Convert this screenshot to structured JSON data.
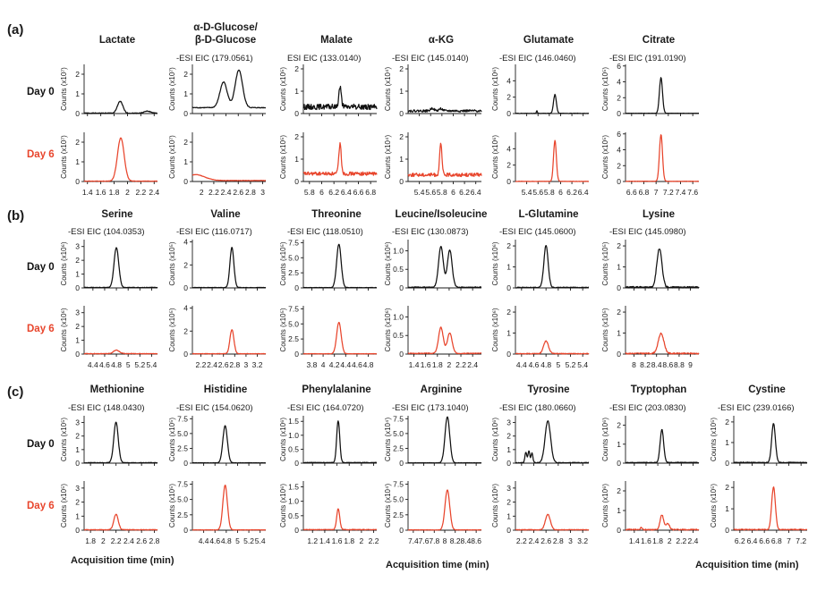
{
  "colors": {
    "day0": "#111111",
    "day6": "#e8452c"
  },
  "sections": [
    "(a)",
    "(b)",
    "(c)"
  ],
  "days": [
    "Day 0",
    "Day 6"
  ],
  "xlabel": "Acquisition time (min)",
  "chart_data": [
    {
      "section": "a",
      "title": [
        "Lactate"
      ],
      "eic": "",
      "type": "line",
      "xlim": [
        1.35,
        2.45
      ],
      "xticks": [
        1.4,
        1.6,
        1.8,
        2,
        2.2,
        2.4
      ],
      "xticklabels": [
        "1.4",
        "1.6",
        "1.8",
        "2",
        "2.2",
        "2.4"
      ],
      "ylim": [
        0,
        2.5
      ],
      "yticks": [
        1,
        2
      ],
      "yticklabels": [
        "1",
        "2"
      ],
      "ylabel": "Counts (x10⁷)",
      "day0": {
        "base": 0.02,
        "noise": 0.02,
        "peaks": [
          [
            1.89,
            0.6,
            0.04
          ],
          [
            2.3,
            0.1,
            0.05
          ]
        ]
      },
      "day6": {
        "base": 0.02,
        "noise": 0.01,
        "peaks": [
          [
            1.9,
            2.2,
            0.05
          ]
        ]
      }
    },
    {
      "section": "a",
      "title": [
        "α-D-Glucose/",
        "β-D-Glucose"
      ],
      "eic": "-ESI EIC (179.0561)",
      "type": "line",
      "xlim": [
        1.85,
        3.05
      ],
      "xticks": [
        2,
        2.2,
        2.4,
        2.6,
        2.8,
        3
      ],
      "xticklabels": [
        "2",
        "2.2",
        "2.4",
        "2.6",
        "2.8",
        "3"
      ],
      "ylim": [
        0,
        2.5
      ],
      "yticks": [
        1,
        2
      ],
      "yticklabels": [
        "1",
        "2"
      ],
      "ylabel": "Counts (x10⁷)",
      "day0": {
        "base": 0.3,
        "noise": 0.02,
        "peaks": [
          [
            2.36,
            1.3,
            0.06
          ],
          [
            2.61,
            1.9,
            0.06
          ]
        ]
      },
      "day6": {
        "base": 0.05,
        "noise": 0.01,
        "peaks": [
          [
            1.9,
            0.3,
            0.15
          ]
        ]
      }
    },
    {
      "section": "a",
      "title": [
        "Malate"
      ],
      "eic": "ESI EIC (133.0140)",
      "type": "line",
      "xlim": [
        5.7,
        6.9
      ],
      "xticks": [
        5.8,
        6,
        6.2,
        6.4,
        6.6,
        6.8
      ],
      "xticklabels": [
        "5.8",
        "6",
        "6.2",
        "6.4",
        "6.6",
        "6.8"
      ],
      "ylim": [
        0,
        2.2
      ],
      "yticks": [
        1,
        2
      ],
      "yticklabels": [
        "1",
        "2"
      ],
      "ylabel": "Counts (x10⁵)",
      "day0": {
        "base": 0.3,
        "noise": 0.12,
        "peaks": [
          [
            6.3,
            0.9,
            0.02
          ]
        ]
      },
      "day6": {
        "base": 0.35,
        "noise": 0.08,
        "peaks": [
          [
            6.3,
            1.35,
            0.02
          ]
        ]
      }
    },
    {
      "section": "a",
      "title": [
        "α-KG"
      ],
      "eic": "-ESI EIC (145.0140)",
      "type": "line",
      "xlim": [
        5.2,
        6.5
      ],
      "xticks": [
        5.4,
        5.6,
        5.8,
        6,
        6.2,
        6.4
      ],
      "xticklabels": [
        "5.4",
        "5.6",
        "5.8",
        "6",
        "6.2",
        "6.4"
      ],
      "ylim": [
        0,
        2.2
      ],
      "yticks": [
        1,
        2
      ],
      "yticklabels": [
        "1",
        "2"
      ],
      "ylabel": "Counts (x10⁴)",
      "day0": {
        "base": 0.12,
        "noise": 0.05,
        "peaks": [
          [
            5.63,
            0.12,
            0.03
          ],
          [
            5.78,
            0.1,
            0.03
          ]
        ]
      },
      "day6": {
        "base": 0.3,
        "noise": 0.08,
        "peaks": [
          [
            5.78,
            1.4,
            0.02
          ]
        ]
      }
    },
    {
      "section": "a",
      "title": [
        "Glutamate"
      ],
      "eic": "-ESI EIC (146.0460)",
      "type": "line",
      "xlim": [
        5.2,
        6.5
      ],
      "xticks": [
        5.4,
        5.6,
        5.8,
        6,
        6.2,
        6.4
      ],
      "xticklabels": [
        "5.4",
        "5.6",
        "5.8",
        "6",
        "6.2",
        "6.4"
      ],
      "ylim": [
        0,
        6
      ],
      "yticks": [
        2,
        4
      ],
      "yticklabels": [
        "2",
        "4"
      ],
      "ylabel": "Counts (x10⁶)",
      "day0": {
        "base": 0.02,
        "noise": 0.03,
        "peaks": [
          [
            5.58,
            0.3,
            0.01
          ],
          [
            5.9,
            2.3,
            0.025
          ]
        ]
      },
      "day6": {
        "base": 0.02,
        "noise": 0.02,
        "peaks": [
          [
            5.9,
            5.0,
            0.025
          ]
        ]
      }
    },
    {
      "section": "a",
      "title": [
        "Citrate"
      ],
      "eic": "-ESI EIC (191.0190)",
      "type": "line",
      "xlim": [
        6.5,
        7.7
      ],
      "xticks": [
        6.6,
        6.8,
        7,
        7.2,
        7.4,
        7.6
      ],
      "xticklabels": [
        "6.6",
        "6.8",
        "7",
        "7.2",
        "7.4",
        "7.6"
      ],
      "ylim": [
        0,
        6.2
      ],
      "yticks": [
        2,
        4,
        6
      ],
      "yticklabels": [
        "2",
        "4",
        "6"
      ],
      "ylabel": "Counts (x10⁵)",
      "day0": {
        "base": 0.03,
        "noise": 0.02,
        "peaks": [
          [
            7.08,
            4.5,
            0.025
          ]
        ]
      },
      "day6": {
        "base": 0.03,
        "noise": 0.02,
        "peaks": [
          [
            7.08,
            5.9,
            0.025
          ]
        ]
      }
    },
    {
      "section": "b",
      "title": [
        "Serine"
      ],
      "eic": "-ESI EIC (104.0353)",
      "type": "line",
      "xlim": [
        4.25,
        5.5
      ],
      "xticks": [
        4.4,
        4.6,
        4.8,
        5,
        5.2,
        5.4
      ],
      "xticklabels": [
        "4.4",
        "4.6",
        "4.8",
        "5",
        "5.2",
        "5.4"
      ],
      "ylim": [
        0,
        3.5
      ],
      "yticks": [
        1,
        2,
        3
      ],
      "yticklabels": [
        "1",
        "2",
        "3"
      ],
      "ylabel": "Counts (x10⁶)",
      "day0": {
        "base": 0.03,
        "noise": 0.02,
        "peaks": [
          [
            4.8,
            2.9,
            0.04
          ]
        ]
      },
      "day6": {
        "base": 0.03,
        "noise": 0.02,
        "peaks": [
          [
            4.8,
            0.25,
            0.05
          ]
        ]
      }
    },
    {
      "section": "b",
      "title": [
        "Valine"
      ],
      "eic": "-ESI EIC (116.0717)",
      "type": "line",
      "xlim": [
        2.05,
        3.35
      ],
      "xticks": [
        2.2,
        2.4,
        2.6,
        2.8,
        3,
        3.2
      ],
      "xticklabels": [
        "2.2",
        "2.4",
        "2.6",
        "2.8",
        "3",
        "3.2"
      ],
      "ylim": [
        0,
        4.2
      ],
      "yticks": [
        2,
        4
      ],
      "yticklabels": [
        "2",
        "4"
      ],
      "ylabel": "Counts (x10⁵)",
      "day0": {
        "base": 0.03,
        "noise": 0.02,
        "peaks": [
          [
            2.75,
            3.5,
            0.035
          ]
        ]
      },
      "day6": {
        "base": 0.03,
        "noise": 0.02,
        "peaks": [
          [
            2.75,
            2.1,
            0.035
          ]
        ]
      }
    },
    {
      "section": "b",
      "title": [
        "Threonine"
      ],
      "eic": "-ESI EIC (118.0510)",
      "type": "line",
      "xlim": [
        3.65,
        4.95
      ],
      "xticks": [
        3.8,
        4,
        4.2,
        4.4,
        4.6,
        4.8
      ],
      "xticklabels": [
        "3.8",
        "4",
        "4.2",
        "4.4",
        "4.6",
        "4.8"
      ],
      "ylim": [
        0,
        8
      ],
      "yticks": [
        2.5,
        5,
        7.5
      ],
      "yticklabels": [
        "2.5",
        "5.0",
        "7.5"
      ],
      "ylabel": "Counts (x10⁵)",
      "day0": {
        "base": 0.05,
        "noise": 0.03,
        "peaks": [
          [
            4.28,
            7.2,
            0.04
          ]
        ]
      },
      "day6": {
        "base": 0.05,
        "noise": 0.03,
        "peaks": [
          [
            4.28,
            5.2,
            0.04
          ]
        ]
      }
    },
    {
      "section": "b",
      "title": [
        "Leucine/Isoleucine"
      ],
      "eic": "-ESI EIC (130.0873)",
      "type": "line",
      "xlim": [
        1.3,
        2.55
      ],
      "xticks": [
        1.4,
        1.6,
        1.8,
        2,
        2.2,
        2.4
      ],
      "xticklabels": [
        "1.4",
        "1.6",
        "1.8",
        "2",
        "2.2",
        "2.4"
      ],
      "ylim": [
        0,
        1.3
      ],
      "yticks": [
        0.5,
        1
      ],
      "yticklabels": [
        "0.5",
        "1.0"
      ],
      "ylabel": "Counts (x10⁶)",
      "day0": {
        "base": 0.02,
        "noise": 0.01,
        "peaks": [
          [
            1.86,
            1.1,
            0.04
          ],
          [
            2.01,
            1.0,
            0.04
          ]
        ]
      },
      "day6": {
        "base": 0.02,
        "noise": 0.01,
        "peaks": [
          [
            1.86,
            0.7,
            0.04
          ],
          [
            2.01,
            0.55,
            0.04
          ]
        ]
      }
    },
    {
      "section": "b",
      "title": [
        "L-Glutamine"
      ],
      "eic": "-ESI EIC (145.0600)",
      "type": "line",
      "xlim": [
        4.3,
        5.5
      ],
      "xticks": [
        4.4,
        4.6,
        4.8,
        5,
        5.2,
        5.4
      ],
      "xticklabels": [
        "4.4",
        "4.6",
        "4.8",
        "5",
        "5.2",
        "5.4"
      ],
      "ylim": [
        0,
        2.3
      ],
      "yticks": [
        1,
        2
      ],
      "yticklabels": [
        "1",
        "2"
      ],
      "ylabel": "Counts (x10⁶)",
      "day0": {
        "base": 0.02,
        "noise": 0.02,
        "peaks": [
          [
            4.8,
            2.0,
            0.035
          ]
        ]
      },
      "day6": {
        "base": 0.02,
        "noise": 0.02,
        "peaks": [
          [
            4.8,
            0.6,
            0.04
          ]
        ]
      }
    },
    {
      "section": "b",
      "title": [
        "Lysine"
      ],
      "eic": "-ESI EIC (145.0980)",
      "type": "line",
      "xlim": [
        7.85,
        9.15
      ],
      "xticks": [
        8,
        8.2,
        8.4,
        8.6,
        8.8,
        9
      ],
      "xticklabels": [
        "8",
        "8.2",
        "8.4",
        "8.6",
        "8.8",
        "9"
      ],
      "ylim": [
        0,
        2.3
      ],
      "yticks": [
        1,
        2
      ],
      "yticklabels": [
        "1",
        "2"
      ],
      "ylabel": "Counts (x10⁵)",
      "day0": {
        "base": 0.03,
        "noise": 0.04,
        "peaks": [
          [
            8.45,
            1.85,
            0.045
          ]
        ]
      },
      "day6": {
        "base": 0.03,
        "noise": 0.03,
        "peaks": [
          [
            8.48,
            0.95,
            0.05
          ]
        ]
      }
    },
    {
      "section": "c",
      "title": [
        "Methionine"
      ],
      "eic": "-ESI EIC (148.0430)",
      "type": "line",
      "xlim": [
        1.7,
        2.85
      ],
      "xticks": [
        1.8,
        2,
        2.2,
        2.4,
        2.6,
        2.8
      ],
      "xticklabels": [
        "1.8",
        "2",
        "2.2",
        "2.4",
        "2.6",
        "2.8"
      ],
      "ylim": [
        0,
        3.5
      ],
      "yticks": [
        1,
        2,
        3
      ],
      "yticklabels": [
        "1",
        "2",
        "3"
      ],
      "ylabel": "Counts (x10⁵)",
      "day0": {
        "base": 0.03,
        "noise": 0.02,
        "peaks": [
          [
            2.2,
            3.0,
            0.035
          ]
        ]
      },
      "day6": {
        "base": 0.03,
        "noise": 0.02,
        "peaks": [
          [
            2.2,
            1.1,
            0.035
          ]
        ]
      }
    },
    {
      "section": "c",
      "title": [
        "Histidine"
      ],
      "eic": "-ESI EIC (154.0620)",
      "type": "line",
      "xlim": [
        4.2,
        5.5
      ],
      "xticks": [
        4.4,
        4.6,
        4.8,
        5,
        5.2,
        5.4
      ],
      "xticklabels": [
        "4.4",
        "4.6",
        "4.8",
        "5",
        "5.2",
        "5.4"
      ],
      "ylim": [
        0,
        8
      ],
      "yticks": [
        2.5,
        5,
        7.5
      ],
      "yticklabels": [
        "2.5",
        "5.0",
        "7.5"
      ],
      "ylabel": "Counts (x10⁵)",
      "day0": {
        "base": 0.05,
        "noise": 0.03,
        "peaks": [
          [
            4.78,
            6.3,
            0.04
          ]
        ]
      },
      "day6": {
        "base": 0.05,
        "noise": 0.03,
        "peaks": [
          [
            4.78,
            7.3,
            0.04
          ]
        ]
      }
    },
    {
      "section": "c",
      "title": [
        "Phenylalanine"
      ],
      "eic": "-ESI EIC (164.0720)",
      "type": "line",
      "xlim": [
        1.05,
        2.25
      ],
      "xticks": [
        1.2,
        1.4,
        1.6,
        1.8,
        2,
        2.2
      ],
      "xticklabels": [
        "1.2",
        "1.4",
        "1.6",
        "1.8",
        "2",
        "2.2"
      ],
      "ylim": [
        0,
        1.7
      ],
      "yticks": [
        0.5,
        1,
        1.5
      ],
      "yticklabels": [
        "0.5",
        "1.0",
        "1.5"
      ],
      "ylabel": "Counts (x10⁶)",
      "day0": {
        "base": 0.02,
        "noise": 0.01,
        "peaks": [
          [
            1.62,
            1.5,
            0.025
          ]
        ]
      },
      "day6": {
        "base": 0.02,
        "noise": 0.01,
        "peaks": [
          [
            1.62,
            0.72,
            0.025
          ]
        ]
      }
    },
    {
      "section": "c",
      "title": [
        "Arginine"
      ],
      "eic": "-ESI EIC (173.1040)",
      "type": "line",
      "xlim": [
        7.3,
        8.7
      ],
      "xticks": [
        7.4,
        7.6,
        7.8,
        8,
        8.2,
        8.4,
        8.6
      ],
      "xticklabels": [
        "7.4",
        "7.6",
        "7.8",
        "8",
        "8.2",
        "8.4",
        "8.6"
      ],
      "ylim": [
        0,
        8
      ],
      "yticks": [
        2.5,
        5,
        7.5
      ],
      "yticklabels": [
        "2.5",
        "5.0",
        "7.5"
      ],
      "ylabel": "Counts (x10⁴)",
      "day0": {
        "base": 0.05,
        "noise": 0.03,
        "peaks": [
          [
            8.05,
            7.8,
            0.045
          ]
        ]
      },
      "day6": {
        "base": 0.05,
        "noise": 0.03,
        "peaks": [
          [
            8.05,
            6.5,
            0.045
          ]
        ]
      }
    },
    {
      "section": "c",
      "title": [
        "Tyrosine"
      ],
      "eic": "-ESI EIC (180.0660)",
      "type": "line",
      "xlim": [
        2.1,
        3.3
      ],
      "xticks": [
        2.2,
        2.4,
        2.6,
        2.8,
        3,
        3.2
      ],
      "xticklabels": [
        "2.2",
        "2.4",
        "2.6",
        "2.8",
        "3",
        "3.2"
      ],
      "ylim": [
        0,
        3.5
      ],
      "yticks": [
        1,
        2,
        3
      ],
      "yticklabels": [
        "1",
        "2",
        "3"
      ],
      "ylabel": "Counts (x10⁶)",
      "day0": {
        "base": 0.03,
        "noise": 0.03,
        "peaks": [
          [
            2.27,
            0.8,
            0.015
          ],
          [
            2.32,
            0.9,
            0.015
          ],
          [
            2.37,
            0.7,
            0.015
          ],
          [
            2.63,
            3.1,
            0.045
          ]
        ]
      },
      "day6": {
        "base": 0.03,
        "noise": 0.02,
        "peaks": [
          [
            2.63,
            1.1,
            0.04
          ]
        ]
      }
    },
    {
      "section": "c",
      "title": [
        "Tryptophan"
      ],
      "eic": "-ESI EIC (203.0830)",
      "type": "line",
      "xlim": [
        1.25,
        2.5
      ],
      "xticks": [
        1.4,
        1.6,
        1.8,
        2,
        2.2,
        2.4
      ],
      "xticklabels": [
        "1.4",
        "1.6",
        "1.8",
        "2",
        "2.2",
        "2.4"
      ],
      "ylim": [
        0,
        2.5
      ],
      "yticks": [
        1,
        2
      ],
      "yticklabels": [
        "1",
        "2"
      ],
      "ylabel": "Counts (x10⁶)",
      "day0": {
        "base": 0.03,
        "noise": 0.02,
        "peaks": [
          [
            1.87,
            1.75,
            0.03
          ]
        ]
      },
      "day6": {
        "base": 0.03,
        "noise": 0.03,
        "peaks": [
          [
            1.52,
            0.1,
            0.02
          ],
          [
            1.87,
            0.75,
            0.03
          ],
          [
            1.97,
            0.3,
            0.03
          ]
        ]
      }
    },
    {
      "section": "c",
      "title": [
        "Cystine"
      ],
      "eic": "-ESI EIC (239.0166)",
      "type": "line",
      "xlim": [
        6.1,
        7.3
      ],
      "xticks": [
        6.2,
        6.4,
        6.6,
        6.8,
        7,
        7.2
      ],
      "xticklabels": [
        "6.2",
        "6.4",
        "6.6",
        "6.8",
        "7",
        "7.2"
      ],
      "ylim": [
        0,
        2.3
      ],
      "yticks": [
        1,
        2
      ],
      "yticklabels": [
        "1",
        "2"
      ],
      "ylabel": "Counts (x10⁵)",
      "day0": {
        "base": 0.03,
        "noise": 0.02,
        "peaks": [
          [
            6.75,
            1.9,
            0.03
          ]
        ]
      },
      "day6": {
        "base": 0.03,
        "noise": 0.02,
        "peaks": [
          [
            6.75,
            2.0,
            0.03
          ]
        ]
      }
    }
  ]
}
